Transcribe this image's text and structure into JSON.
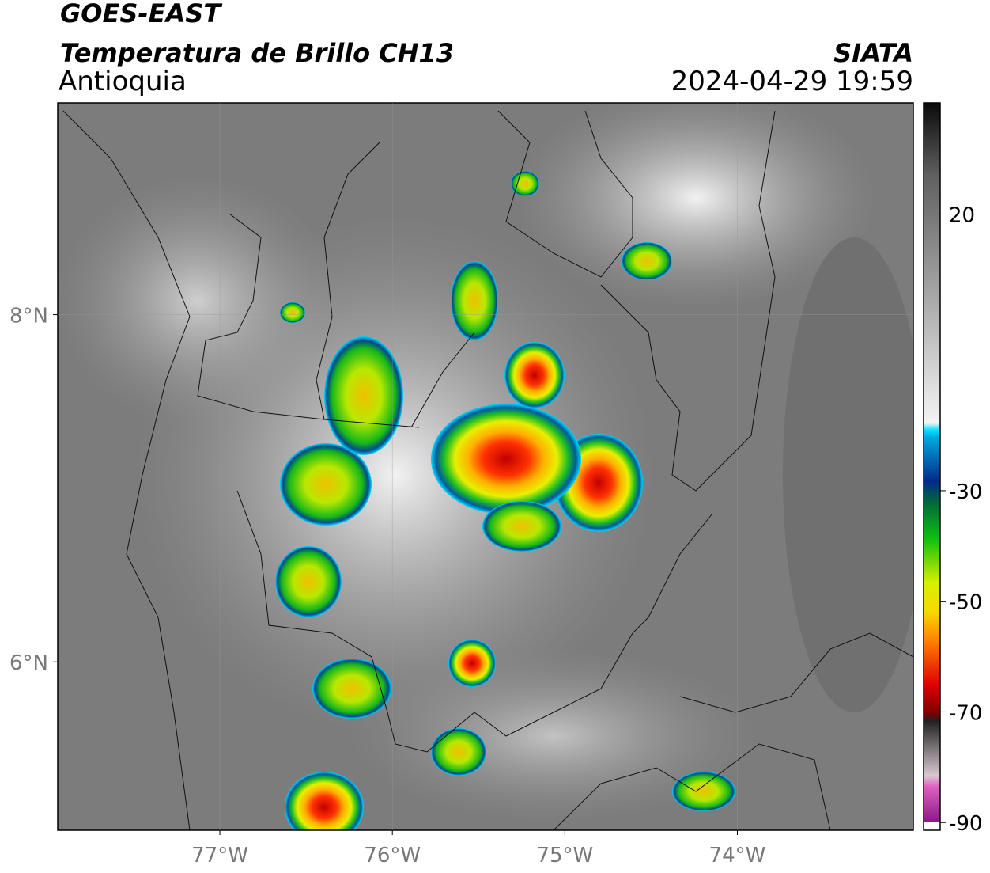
{
  "chart_data": {
    "type": "map",
    "title": "GOES-EAST",
    "subtitle": "Temperatura de Brillo CH13",
    "region": "Antioquia",
    "source": "SIATA",
    "timestamp": "2024-04-29 19:59",
    "xlim": [
      -77.94,
      -72.98
    ],
    "ylim": [
      5.03,
      9.22
    ],
    "xticks": [
      {
        "value": -77,
        "label": "77°W"
      },
      {
        "value": -76,
        "label": "76°W"
      },
      {
        "value": -75,
        "label": "75°W"
      },
      {
        "value": -74,
        "label": "74°W"
      }
    ],
    "yticks": [
      {
        "value": 6,
        "label": "6°N"
      },
      {
        "value": 8,
        "label": "8°N"
      }
    ],
    "grid": true,
    "colorbar": {
      "lim": [
        -91.4,
        40.1
      ],
      "ticks": [
        20,
        -30,
        -50,
        -70,
        -90
      ]
    }
  }
}
